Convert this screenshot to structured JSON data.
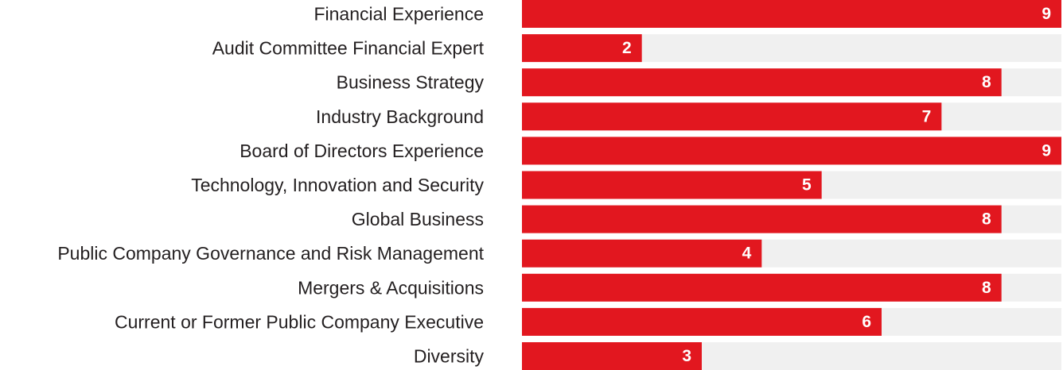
{
  "chart_data": {
    "type": "bar",
    "orientation": "horizontal",
    "categories": [
      "Financial Experience",
      "Audit Committee Financial Expert",
      "Business Strategy",
      "Industry Background",
      "Board of Directors Experience",
      "Technology, Innovation and Security",
      "Global Business",
      "Public Company Governance and Risk Management",
      "Mergers & Acquisitions",
      "Current or Former Public Company Executive",
      "Diversity"
    ],
    "values": [
      9,
      2,
      8,
      7,
      9,
      5,
      8,
      4,
      8,
      6,
      3
    ],
    "value_labels": [
      "9",
      "2",
      "8",
      "7",
      "9",
      "5",
      "8",
      "4",
      "8",
      "6",
      "3"
    ],
    "xlim": [
      0,
      9
    ],
    "grid": false,
    "legend": "none",
    "title": "",
    "xlabel": "",
    "ylabel": ""
  },
  "colors": {
    "bar": "#e2171f",
    "track": "#f0f0f0",
    "category_text": "#231f20",
    "value_text": "#ffffff"
  }
}
